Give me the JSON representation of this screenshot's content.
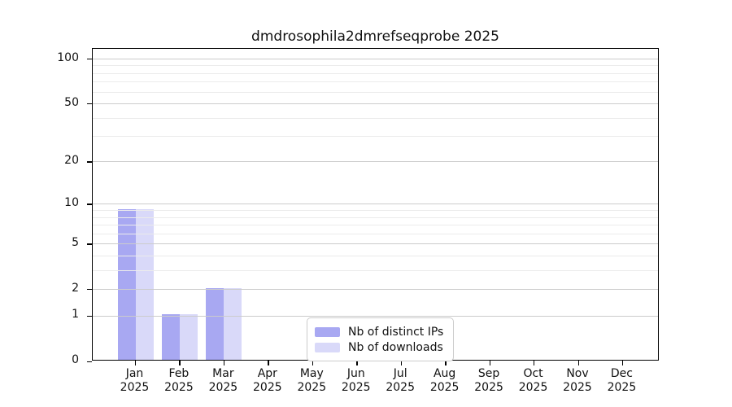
{
  "title": "dmdrosophila2dmrefseqprobe 2025",
  "colors": {
    "distinct_ips": "#a8a8f2",
    "downloads": "#d9d9f9",
    "grid_major": "#cccccc",
    "grid_minor": "#ebebeb",
    "axis": "#000000",
    "background": "#ffffff",
    "legend_border": "#cccccc"
  },
  "chart_data": {
    "type": "bar",
    "title": "dmdrosophila2dmrefseqprobe 2025",
    "scale": "log1p",
    "categories": [
      "Jan",
      "Feb",
      "Mar",
      "Apr",
      "May",
      "Jun",
      "Jul",
      "Aug",
      "Sep",
      "Oct",
      "Nov",
      "Dec"
    ],
    "year_label": "2025",
    "series": [
      {
        "name": "Nb of distinct IPs",
        "color": "#a8a8f2",
        "values": [
          9,
          1,
          2,
          0,
          0,
          0,
          0,
          0,
          0,
          0,
          0,
          0
        ]
      },
      {
        "name": "Nb of downloads",
        "color": "#d9d9f9",
        "values": [
          9,
          1,
          2,
          0,
          0,
          0,
          0,
          0,
          0,
          0,
          0,
          0
        ]
      }
    ],
    "y_ticks": [
      0,
      1,
      2,
      5,
      10,
      20,
      50,
      100
    ],
    "y_minor_ticks": [
      3,
      4,
      6,
      7,
      8,
      9,
      30,
      40,
      60,
      70,
      80,
      90
    ],
    "ylim": [
      0,
      117
    ],
    "xlabel": "",
    "ylabel": "",
    "grid": true,
    "legend_position": "lower center"
  },
  "legend": {
    "items": [
      {
        "label": "Nb of distinct IPs",
        "color": "#a8a8f2"
      },
      {
        "label": "Nb of downloads",
        "color": "#d9d9f9"
      }
    ]
  }
}
